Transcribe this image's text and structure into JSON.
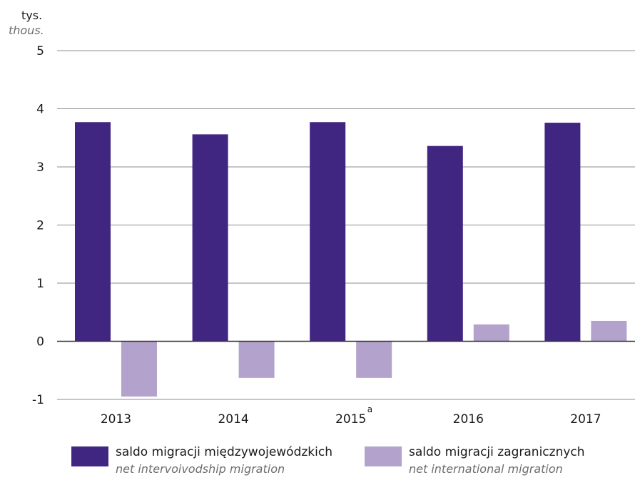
{
  "chart_data": {
    "type": "bar",
    "unit_label_pl": "tys.",
    "unit_label_en": "thous.",
    "categories": [
      "2013",
      "2014",
      "2015",
      "2016",
      "2017"
    ],
    "category_notes": [
      "",
      "",
      "a",
      "",
      ""
    ],
    "series": [
      {
        "name": "saldo migracji międzywojewódzkich",
        "name_en": "net intervoivodship migration",
        "color": "#402680",
        "values": [
          3.77,
          3.56,
          3.77,
          3.36,
          3.76
        ]
      },
      {
        "name": "saldo migracji zagranicznych",
        "name_en": "net international migration",
        "color": "#b2a2cc",
        "values": [
          -0.95,
          -0.63,
          -0.63,
          0.29,
          0.35
        ]
      }
    ],
    "ylim": [
      -1,
      5
    ],
    "yticks": [
      -1,
      0,
      1,
      2,
      3,
      4,
      5
    ],
    "grid": true,
    "legend_position": "bottom"
  }
}
